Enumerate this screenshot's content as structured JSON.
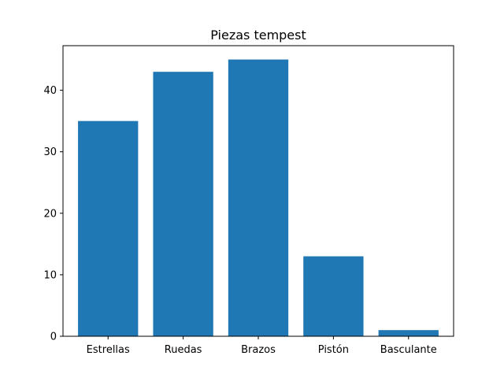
{
  "chart_data": {
    "type": "bar",
    "title": "Piezas tempest",
    "xlabel": "",
    "ylabel": "",
    "categories": [
      "Estrellas",
      "Ruedas",
      "Brazos",
      "Pistón",
      "Basculante"
    ],
    "values": [
      35,
      43,
      45,
      13,
      1
    ],
    "ylim": [
      0,
      47.25
    ],
    "yticks": [
      0,
      10,
      20,
      30,
      40
    ],
    "grid": false,
    "bar_color": "#1f77b4"
  }
}
